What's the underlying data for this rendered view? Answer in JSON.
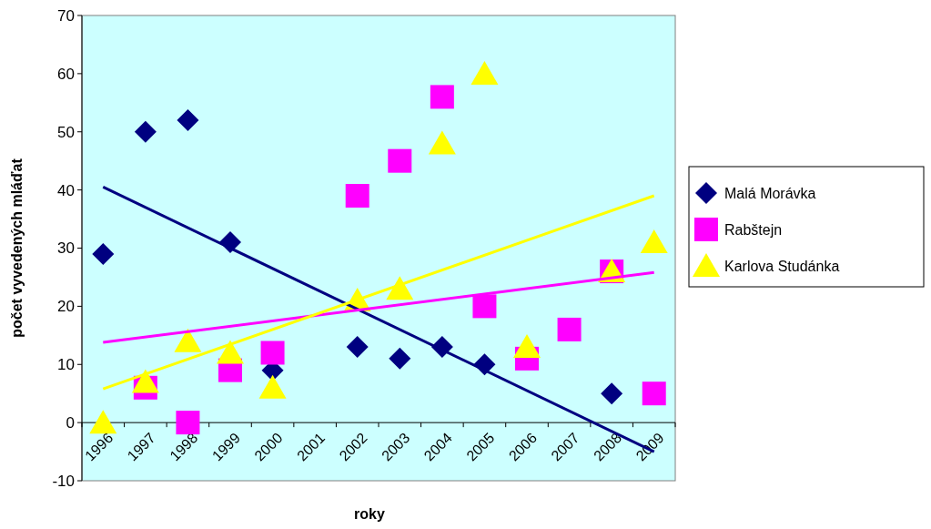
{
  "chart_data": {
    "type": "scatter",
    "xlabel": "roky",
    "ylabel": "počet vyvedených mláďat",
    "categories": [
      "1996",
      "1997",
      "1998",
      "1999",
      "2000",
      "2001",
      "2002",
      "2003",
      "2004",
      "2005",
      "2006",
      "2007",
      "2008",
      "2009"
    ],
    "ylim": [
      -10,
      70
    ],
    "yticks": [
      -10,
      0,
      10,
      20,
      30,
      40,
      50,
      60,
      70
    ],
    "grid": false,
    "legend": "right",
    "series": [
      {
        "name": "Malá Morávka",
        "color": "#000080",
        "marker": "diamond",
        "values": [
          29,
          50,
          52,
          31,
          9,
          null,
          13,
          11,
          13,
          10,
          null,
          null,
          5,
          null
        ]
      },
      {
        "name": "Rabštejn",
        "color": "#ff00ff",
        "marker": "square",
        "values": [
          null,
          6,
          0,
          9,
          12,
          null,
          39,
          45,
          56,
          20,
          11,
          16,
          26,
          5
        ]
      },
      {
        "name": "Karlova Studánka",
        "color": "#ffff00",
        "marker": "triangle",
        "values": [
          0,
          7,
          14,
          12,
          6,
          null,
          21,
          23,
          48,
          60,
          13,
          null,
          26,
          31
        ]
      },
      {
        "type": "line",
        "color": "#000080",
        "values": [
          40.5,
          null,
          null,
          null,
          null,
          null,
          null,
          null,
          null,
          null,
          null,
          null,
          null,
          -5
        ]
      },
      {
        "type": "line",
        "color": "#ff00ff",
        "values": [
          13.8,
          null,
          null,
          null,
          null,
          null,
          null,
          null,
          null,
          null,
          null,
          null,
          null,
          25.8
        ]
      },
      {
        "type": "line",
        "color": "#ffff00",
        "values": [
          5.8,
          null,
          null,
          null,
          null,
          null,
          null,
          null,
          null,
          null,
          null,
          null,
          null,
          39
        ]
      }
    ]
  }
}
